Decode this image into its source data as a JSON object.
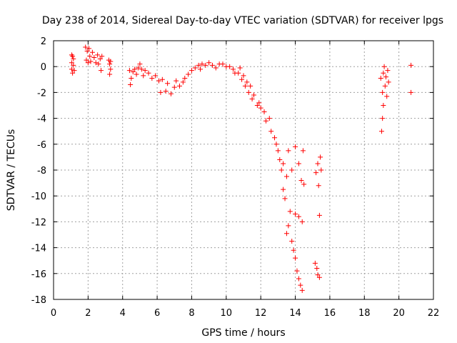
{
  "chart_data": {
    "type": "scatter",
    "title": "Day 238 of 2014, Sidereal Day-to-day VTEC variation (SDTVAR) for receiver lpgs",
    "xlabel": "GPS time / hours",
    "ylabel": "SDTVAR / TECUs",
    "xlim": [
      0,
      22
    ],
    "ylim": [
      -18,
      2
    ],
    "xticks": [
      0,
      2,
      4,
      6,
      8,
      10,
      12,
      14,
      16,
      18,
      20,
      22
    ],
    "yticks": [
      -18,
      -16,
      -14,
      -12,
      -10,
      -8,
      -6,
      -4,
      -2,
      0,
      2
    ],
    "grid": true,
    "marker": "+",
    "colors": {
      "series": "#ff0000",
      "grid": "#a0a0a0",
      "frame": "#000000"
    },
    "series": [
      {
        "name": "SDTVAR",
        "points": [
          [
            1.05,
            0.9
          ],
          [
            1.05,
            0.3
          ],
          [
            1.05,
            -0.2
          ],
          [
            1.1,
            0.8
          ],
          [
            1.1,
            -0.5
          ],
          [
            1.15,
            0.6
          ],
          [
            1.15,
            0.1
          ],
          [
            1.2,
            -0.3
          ],
          [
            1.85,
            1.5
          ],
          [
            1.9,
            0.5
          ],
          [
            1.95,
            1.2
          ],
          [
            2.0,
            0.3
          ],
          [
            2.05,
            1.4
          ],
          [
            2.1,
            0.8
          ],
          [
            2.15,
            0.4
          ],
          [
            2.25,
            1.1
          ],
          [
            2.35,
            0.7
          ],
          [
            2.45,
            0.3
          ],
          [
            2.55,
            0.9
          ],
          [
            2.6,
            0.2
          ],
          [
            2.7,
            0.6
          ],
          [
            2.75,
            -0.3
          ],
          [
            2.8,
            0.8
          ],
          [
            3.2,
            0.5
          ],
          [
            3.25,
            0.2
          ],
          [
            3.25,
            -0.6
          ],
          [
            3.3,
            -0.2
          ],
          [
            3.3,
            0.4
          ],
          [
            4.4,
            -0.3
          ],
          [
            4.45,
            -1.4
          ],
          [
            4.5,
            -0.9
          ],
          [
            4.6,
            -0.4
          ],
          [
            4.7,
            -0.2
          ],
          [
            4.8,
            -0.6
          ],
          [
            4.9,
            -0.1
          ],
          [
            5.0,
            0.2
          ],
          [
            5.1,
            -0.2
          ],
          [
            5.2,
            -0.7
          ],
          [
            5.3,
            -0.3
          ],
          [
            5.5,
            -0.5
          ],
          [
            5.7,
            -0.9
          ],
          [
            5.9,
            -0.7
          ],
          [
            6.1,
            -1.1
          ],
          [
            6.2,
            -2.0
          ],
          [
            6.3,
            -1.0
          ],
          [
            6.5,
            -1.9
          ],
          [
            6.6,
            -1.3
          ],
          [
            6.8,
            -2.1
          ],
          [
            7.0,
            -1.6
          ],
          [
            7.1,
            -1.1
          ],
          [
            7.3,
            -1.5
          ],
          [
            7.5,
            -1.2
          ],
          [
            7.6,
            -0.9
          ],
          [
            7.8,
            -0.6
          ],
          [
            8.0,
            -0.3
          ],
          [
            8.2,
            -0.1
          ],
          [
            8.4,
            0.1
          ],
          [
            8.5,
            -0.2
          ],
          [
            8.6,
            0.2
          ],
          [
            8.8,
            0.1
          ],
          [
            9.0,
            0.3
          ],
          [
            9.2,
            0.1
          ],
          [
            9.4,
            -0.1
          ],
          [
            9.6,
            0.2
          ],
          [
            9.8,
            0.2
          ],
          [
            10.0,
            0.0
          ],
          [
            10.2,
            0.0
          ],
          [
            10.4,
            -0.2
          ],
          [
            10.5,
            -0.5
          ],
          [
            10.7,
            -0.5
          ],
          [
            10.8,
            -0.1
          ],
          [
            10.9,
            -1.0
          ],
          [
            11.0,
            -0.7
          ],
          [
            11.1,
            -1.5
          ],
          [
            11.2,
            -1.2
          ],
          [
            11.3,
            -2.0
          ],
          [
            11.4,
            -1.5
          ],
          [
            11.5,
            -2.5
          ],
          [
            11.6,
            -2.2
          ],
          [
            11.8,
            -3.0
          ],
          [
            11.9,
            -2.8
          ],
          [
            12.0,
            -3.2
          ],
          [
            12.2,
            -3.5
          ],
          [
            12.3,
            -4.2
          ],
          [
            12.5,
            -4.0
          ],
          [
            12.6,
            -5.0
          ],
          [
            12.8,
            -5.5
          ],
          [
            12.9,
            -6.0
          ],
          [
            13.0,
            -6.5
          ],
          [
            13.1,
            -7.2
          ],
          [
            13.2,
            -8.0
          ],
          [
            13.3,
            -7.5
          ],
          [
            13.3,
            -9.5
          ],
          [
            13.4,
            -10.2
          ],
          [
            13.5,
            -8.5
          ],
          [
            13.5,
            -12.9
          ],
          [
            13.6,
            -12.3
          ],
          [
            13.6,
            -6.5
          ],
          [
            13.7,
            -11.2
          ],
          [
            13.8,
            -8.0
          ],
          [
            13.8,
            -13.5
          ],
          [
            13.9,
            -14.2
          ],
          [
            14.0,
            -6.2
          ],
          [
            14.0,
            -11.4
          ],
          [
            14.0,
            -14.8
          ],
          [
            14.1,
            -15.8
          ],
          [
            14.2,
            -7.5
          ],
          [
            14.2,
            -11.6
          ],
          [
            14.2,
            -16.4
          ],
          [
            14.3,
            -16.9
          ],
          [
            14.35,
            -8.8
          ],
          [
            14.4,
            -17.3
          ],
          [
            14.4,
            -12.0
          ],
          [
            14.45,
            -6.5
          ],
          [
            14.5,
            -9.1
          ],
          [
            15.15,
            -15.2
          ],
          [
            15.2,
            -8.2
          ],
          [
            15.25,
            -15.6
          ],
          [
            15.3,
            -7.5
          ],
          [
            15.3,
            -16.1
          ],
          [
            15.35,
            -9.2
          ],
          [
            15.4,
            -11.5
          ],
          [
            15.4,
            -16.3
          ],
          [
            15.45,
            -7.0
          ],
          [
            15.5,
            -8.0
          ],
          [
            18.95,
            -0.9
          ],
          [
            19.0,
            -5.0
          ],
          [
            19.05,
            -2.0
          ],
          [
            19.05,
            -4.0
          ],
          [
            19.1,
            -0.5
          ],
          [
            19.1,
            -3.0
          ],
          [
            19.15,
            0.0
          ],
          [
            19.2,
            -1.5
          ],
          [
            19.25,
            -0.8
          ],
          [
            19.3,
            -2.3
          ],
          [
            19.35,
            -0.3
          ],
          [
            19.4,
            -1.2
          ],
          [
            20.7,
            0.1
          ],
          [
            20.7,
            -2.0
          ]
        ]
      }
    ]
  }
}
